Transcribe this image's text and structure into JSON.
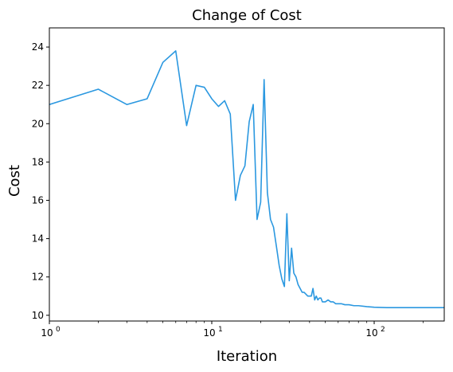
{
  "chart_data": {
    "type": "line",
    "title": "Change of Cost",
    "xlabel": "Iteration",
    "ylabel": "Cost",
    "xscale": "log",
    "xlim": [
      1,
      270
    ],
    "ylim": [
      9.7,
      25
    ],
    "grid": false,
    "line_color": "#2b98e0",
    "yticks": [
      10,
      12,
      14,
      16,
      18,
      20,
      22,
      24
    ],
    "xticks": [
      {
        "value": 1,
        "base": "10",
        "exp": "0"
      },
      {
        "value": 10,
        "base": "10",
        "exp": "1"
      },
      {
        "value": 100,
        "base": "10",
        "exp": "2"
      }
    ],
    "series": [
      {
        "x": [
          1,
          2,
          3,
          4,
          5,
          6,
          7,
          8,
          9,
          10,
          11,
          12,
          13,
          14,
          15,
          16,
          17,
          18,
          19,
          20,
          21,
          22,
          23,
          24,
          25,
          26,
          27,
          28,
          29,
          30,
          31,
          32,
          33,
          34,
          35,
          36,
          37,
          38,
          39,
          40,
          41,
          42,
          43,
          44,
          45,
          46,
          47,
          48,
          50,
          52,
          54,
          56,
          58,
          60,
          63,
          66,
          70,
          75,
          80,
          90,
          100,
          120,
          150,
          200,
          270
        ],
        "y": [
          21.0,
          21.8,
          21.0,
          21.3,
          23.2,
          23.8,
          19.9,
          22.0,
          21.9,
          21.3,
          20.9,
          21.2,
          20.5,
          16.0,
          17.3,
          17.8,
          20.1,
          21.0,
          15.0,
          15.9,
          22.3,
          16.4,
          15.0,
          14.6,
          13.6,
          12.6,
          11.9,
          11.5,
          15.3,
          11.8,
          13.5,
          12.2,
          12.0,
          11.6,
          11.4,
          11.2,
          11.2,
          11.1,
          11.0,
          11.0,
          11.0,
          11.4,
          10.8,
          11.0,
          10.8,
          10.9,
          10.9,
          10.7,
          10.7,
          10.8,
          10.7,
          10.7,
          10.6,
          10.6,
          10.6,
          10.55,
          10.55,
          10.5,
          10.5,
          10.45,
          10.42,
          10.4,
          10.4,
          10.4,
          10.4
        ]
      }
    ]
  }
}
